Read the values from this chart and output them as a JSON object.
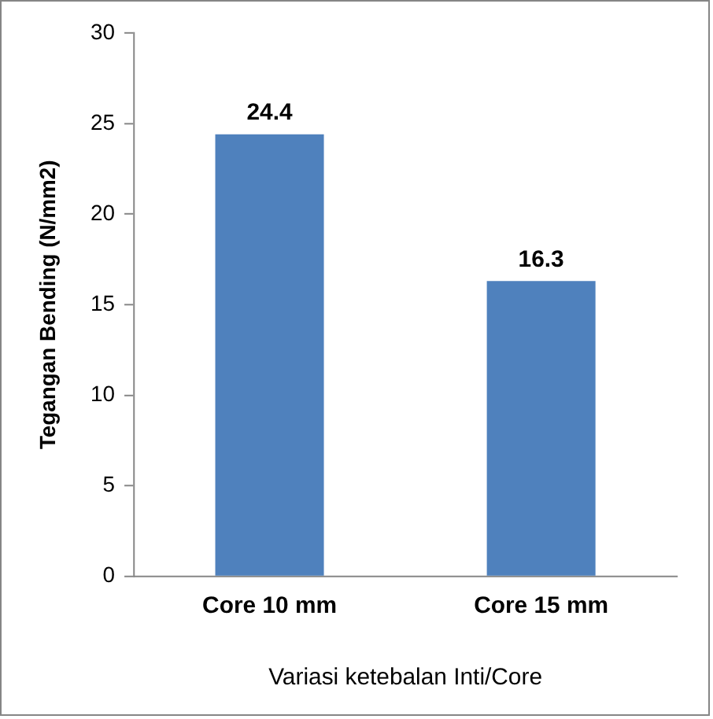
{
  "chart_data": {
    "type": "bar",
    "xlabel": "Variasi ketebalan Inti/Core",
    "ylabel": "Tegangan Bending (N/mm2)",
    "categories": [
      "Core 10 mm",
      "Core 15 mm"
    ],
    "values": [
      24.4,
      16.3
    ],
    "color": "#4f81bd",
    "ylim": [
      0,
      30
    ],
    "yticks": [
      0,
      5,
      10,
      15,
      20,
      25,
      30
    ],
    "grid": false,
    "legend": false,
    "data_labels": true
  }
}
